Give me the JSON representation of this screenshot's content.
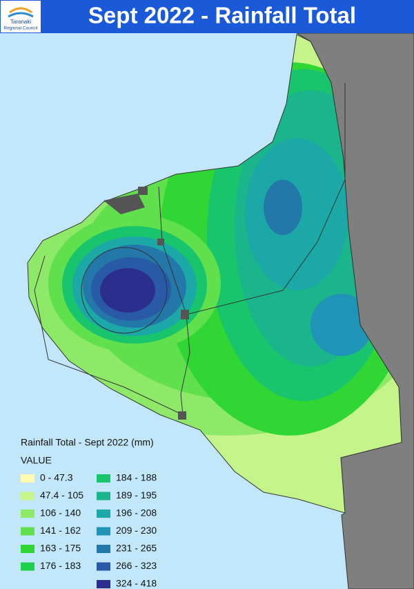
{
  "header": {
    "title": "Sept 2022 - Rainfall Total",
    "logo_text": [
      "Taranaki",
      "Regional Council"
    ]
  },
  "legend": {
    "title": "Rainfall Total - Sept 2022 (mm)",
    "subtitle": "VALUE",
    "items": [
      {
        "label": "0 - 47.3",
        "color": "#fdfbb0"
      },
      {
        "label": "47.4 - 105",
        "color": "#c4f48a"
      },
      {
        "label": "106 - 140",
        "color": "#8ee968"
      },
      {
        "label": "141 - 162",
        "color": "#5fe04c"
      },
      {
        "label": "163 - 175",
        "color": "#2fd634"
      },
      {
        "label": "176 - 183",
        "color": "#1fd04c"
      },
      {
        "label": "184 - 188",
        "color": "#18c46c"
      },
      {
        "label": "189 - 195",
        "color": "#1ab58a"
      },
      {
        "label": "196 - 208",
        "color": "#1ba8a6"
      },
      {
        "label": "209 - 230",
        "color": "#1f94b6"
      },
      {
        "label": "231 - 265",
        "color": "#2477a9"
      },
      {
        "label": "266 - 323",
        "color": "#295aa6"
      },
      {
        "label": "324 - 418",
        "color": "#2b2e8c"
      }
    ]
  }
}
